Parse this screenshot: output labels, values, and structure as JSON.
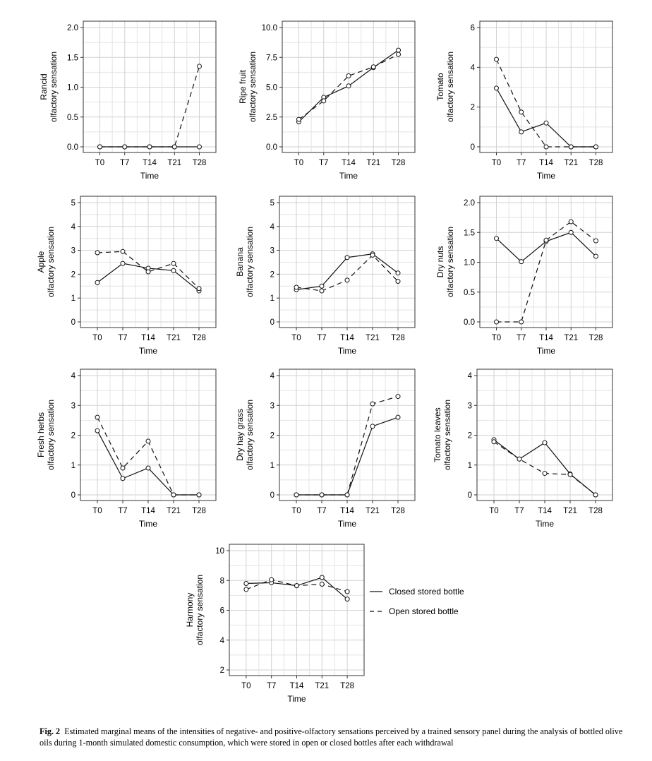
{
  "chart_data": [
    {
      "type": "line",
      "categories": [
        "T0",
        "T7",
        "T14",
        "T21",
        "T28"
      ],
      "xlabel": "Time",
      "ylabel": [
        "Rancid",
        "olfactory sensation"
      ],
      "ylim": [
        0,
        2.0
      ],
      "yticks": [
        "0.0",
        "0.5",
        "1.0",
        "1.5",
        "2.0"
      ],
      "grid": true,
      "series": [
        {
          "name": "Closed stored bottle",
          "values": [
            0,
            0,
            0,
            0,
            0
          ]
        },
        {
          "name": "Open stored bottle",
          "values": [
            0,
            0,
            0,
            0,
            1.35
          ]
        }
      ]
    },
    {
      "type": "line",
      "categories": [
        "T0",
        "T7",
        "T14",
        "T21",
        "T28"
      ],
      "xlabel": "Time",
      "ylabel": [
        "Ripe fruit",
        "olfactory sensation"
      ],
      "ylim": [
        0,
        10.0
      ],
      "yticks": [
        "0.0",
        "2.5",
        "5.0",
        "7.5",
        "10.0"
      ],
      "grid": true,
      "series": [
        {
          "name": "Closed stored bottle",
          "values": [
            2.1,
            4.15,
            5.1,
            6.65,
            8.1
          ]
        },
        {
          "name": "Open stored bottle",
          "values": [
            2.3,
            3.85,
            5.95,
            6.7,
            7.75
          ]
        }
      ]
    },
    {
      "type": "line",
      "categories": [
        "T0",
        "T7",
        "T14",
        "T21",
        "T28"
      ],
      "xlabel": "Time",
      "ylabel": [
        "Tomato",
        "olfactory sensation"
      ],
      "ylim": [
        0,
        6
      ],
      "yticks": [
        "0",
        "2",
        "4",
        "6"
      ],
      "grid": true,
      "series": [
        {
          "name": "Closed stored bottle",
          "values": [
            2.95,
            0.75,
            1.2,
            0,
            0
          ]
        },
        {
          "name": "Open stored bottle",
          "values": [
            4.4,
            1.75,
            0,
            0,
            0
          ]
        }
      ]
    },
    {
      "type": "line",
      "categories": [
        "T0",
        "T7",
        "T14",
        "T21",
        "T28"
      ],
      "xlabel": "Time",
      "ylabel": [
        "Apple",
        "olfactory sensation"
      ],
      "ylim": [
        0,
        5
      ],
      "yticks": [
        "0",
        "1",
        "2",
        "3",
        "4",
        "5"
      ],
      "grid": true,
      "series": [
        {
          "name": "Closed stored bottle",
          "values": [
            1.65,
            2.45,
            2.25,
            2.15,
            1.3
          ]
        },
        {
          "name": "Open stored bottle",
          "values": [
            2.9,
            2.95,
            2.1,
            2.45,
            1.4
          ]
        }
      ]
    },
    {
      "type": "line",
      "categories": [
        "T0",
        "T7",
        "T14",
        "T21",
        "T28"
      ],
      "xlabel": "Time",
      "ylabel": [
        "Banana",
        "olfactory sensation"
      ],
      "ylim": [
        0,
        5
      ],
      "yticks": [
        "0",
        "1",
        "2",
        "3",
        "4",
        "5"
      ],
      "grid": true,
      "series": [
        {
          "name": "Closed stored bottle",
          "values": [
            1.35,
            1.5,
            2.7,
            2.85,
            2.05
          ]
        },
        {
          "name": "Open stored bottle",
          "values": [
            1.45,
            1.3,
            1.75,
            2.8,
            1.7
          ]
        }
      ]
    },
    {
      "type": "line",
      "categories": [
        "T0",
        "T7",
        "T14",
        "T21",
        "T28"
      ],
      "xlabel": "Time",
      "ylabel": [
        "Dry nuts",
        "olfactory sensation"
      ],
      "ylim": [
        0,
        2.0
      ],
      "yticks": [
        "0.0",
        "0.5",
        "1.0",
        "1.5",
        "2.0"
      ],
      "grid": true,
      "series": [
        {
          "name": "Closed stored bottle",
          "values": [
            1.4,
            1.01,
            1.35,
            1.5,
            1.1
          ]
        },
        {
          "name": "Open stored bottle",
          "values": [
            0,
            0,
            1.37,
            1.68,
            1.36
          ]
        }
      ]
    },
    {
      "type": "line",
      "categories": [
        "T0",
        "T7",
        "T14",
        "T21",
        "T28"
      ],
      "xlabel": "Time",
      "ylabel": [
        "Fresh herbs",
        "olfactory sensation"
      ],
      "ylim": [
        0,
        4
      ],
      "yticks": [
        "0",
        "1",
        "2",
        "3",
        "4"
      ],
      "grid": true,
      "series": [
        {
          "name": "Closed stored bottle",
          "values": [
            2.15,
            0.55,
            0.9,
            0,
            0
          ]
        },
        {
          "name": "Open stored bottle",
          "values": [
            2.6,
            0.9,
            1.8,
            0,
            0
          ]
        }
      ]
    },
    {
      "type": "line",
      "categories": [
        "T0",
        "T7",
        "T14",
        "T21",
        "T28"
      ],
      "xlabel": "Time",
      "ylabel": [
        "Dry hay grass",
        "olfactory sensation"
      ],
      "ylim": [
        0,
        4
      ],
      "yticks": [
        "0",
        "1",
        "2",
        "3",
        "4"
      ],
      "grid": true,
      "series": [
        {
          "name": "Closed stored bottle",
          "values": [
            0,
            0,
            0,
            2.3,
            2.6
          ]
        },
        {
          "name": "Open stored bottle",
          "values": [
            0,
            0,
            0,
            3.05,
            3.3
          ]
        }
      ]
    },
    {
      "type": "line",
      "categories": [
        "T0",
        "T7",
        "T14",
        "T21",
        "T28"
      ],
      "xlabel": "Time",
      "ylabel": [
        "Tomato leaves",
        "olfactory sensation"
      ],
      "ylim": [
        0,
        4
      ],
      "yticks": [
        "0",
        "1",
        "2",
        "3",
        "4"
      ],
      "grid": true,
      "series": [
        {
          "name": "Closed stored bottle",
          "values": [
            1.85,
            1.2,
            1.75,
            0.7,
            0
          ]
        },
        {
          "name": "Open stored bottle",
          "values": [
            1.78,
            1.2,
            0.72,
            0.68,
            0
          ]
        }
      ]
    },
    {
      "type": "line",
      "categories": [
        "T0",
        "T7",
        "T14",
        "T21",
        "T28"
      ],
      "xlabel": "Time",
      "ylabel": [
        "Harmony",
        "olfactory sensation"
      ],
      "ylim": [
        2,
        10
      ],
      "yticks": [
        "2",
        "4",
        "6",
        "8",
        "10"
      ],
      "grid": true,
      "series": [
        {
          "name": "Closed stored bottle",
          "values": [
            7.8,
            7.85,
            7.65,
            8.2,
            6.75
          ]
        },
        {
          "name": "Open stored bottle",
          "values": [
            7.4,
            8.05,
            7.65,
            7.75,
            7.25
          ]
        }
      ]
    }
  ],
  "legend": {
    "placement": "right",
    "entries": [
      {
        "label": "Closed stored bottle",
        "style": "solid"
      },
      {
        "label": "Open stored bottle",
        "style": "dashed"
      }
    ]
  },
  "caption": {
    "label": "Fig. 2",
    "text": "Estimated marginal means of the intensities of negative- and positive-olfactory sensations perceived by a trained sensory panel during the analysis of bottled olive oils during 1-month simulated domestic consumption, which were stored in open or closed bottles after each withdrawal"
  }
}
